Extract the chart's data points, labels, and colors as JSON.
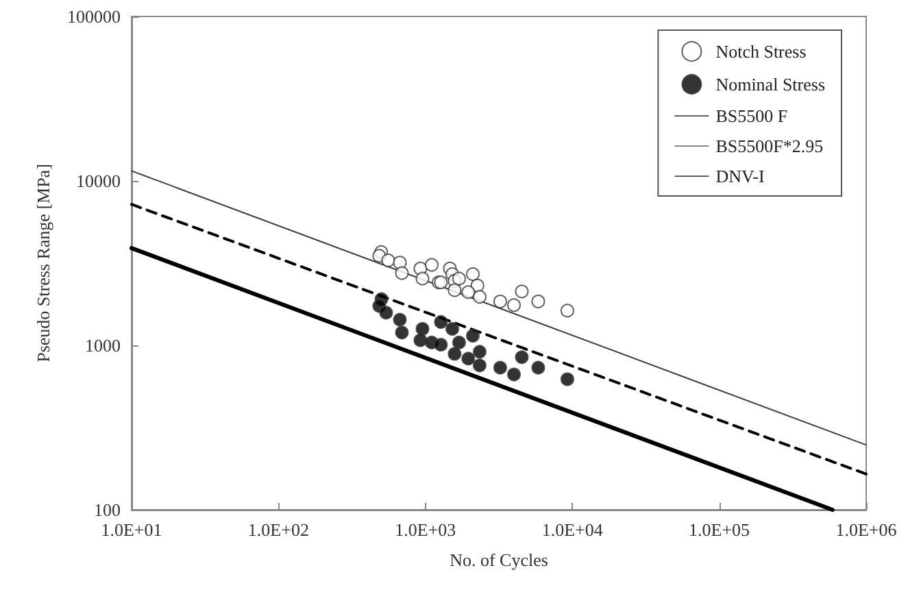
{
  "chart_data": {
    "type": "scatter",
    "xlabel": "No. of Cycles",
    "ylabel": "Pseudo Stress Range [MPa]",
    "log": "xy",
    "grid": false,
    "legend": "top right",
    "xlim": [
      10,
      1000000
    ],
    "ylim": [
      100,
      100000
    ],
    "xticks": [
      {
        "value": 10,
        "label": "1.0E+01"
      },
      {
        "value": 100,
        "label": "1.0E+02"
      },
      {
        "value": 1000,
        "label": "1.0E+03"
      },
      {
        "value": 10000,
        "label": "1.0E+04"
      },
      {
        "value": 100000,
        "label": "1.0E+05"
      },
      {
        "value": 1000000,
        "label": "1.0E+06"
      }
    ],
    "yticks": [
      100,
      1000,
      10000,
      100000
    ],
    "series": [
      {
        "name": "Notch Stress",
        "marker": "circle",
        "color": "#ffffff",
        "x": [
          500,
          485,
          558,
          670,
          692,
          924,
          955,
          1104,
          1230,
          1275,
          1468,
          1524,
          1580,
          1695,
          2103,
          2261,
          1580,
          1958,
          2340,
          3230,
          4006,
          4530,
          5860,
          9250
        ],
        "values": [
          3690,
          3500,
          3285,
          3185,
          2750,
          2930,
          2545,
          3085,
          2415,
          2415,
          2930,
          2710,
          2465,
          2545,
          2710,
          2310,
          2165,
          2105,
          1970,
          1848,
          1755,
          2127,
          1848,
          1625
        ]
      },
      {
        "name": "Nominal Stress",
        "marker": "circle",
        "color": "#000000",
        "x": [
          502,
          485,
          540,
          670,
          692,
          955,
          924,
          1104,
          1275,
          1275,
          1524,
          1695,
          1580,
          2103,
          1958,
          2340,
          2340,
          3230,
          4006,
          4530,
          5860,
          9250
        ],
        "values": [
          1910,
          1735,
          1578,
          1432,
          1196,
          1259,
          1073,
          1040,
          1008,
          1386,
          1259,
          1040,
          887,
          1143,
          830,
          914,
          755,
          731,
          665,
          847,
          731,
          622
        ]
      },
      {
        "name": "BS5500 F",
        "type": "line",
        "marker": "none",
        "line_style": "solid",
        "color": "#000000",
        "x": [
          10,
          590000
        ],
        "values": [
          3900,
          100
        ]
      },
      {
        "name": "BS5500F*2.95",
        "type": "line",
        "marker": "none",
        "line_style": "solid",
        "color": "#404040",
        "x": [
          10,
          1000000
        ],
        "values": [
          11500,
          248
        ]
      },
      {
        "name": "DNV-I",
        "type": "line",
        "marker": "none",
        "line_style": "dashed",
        "color": "#000000",
        "x": [
          10,
          1000000
        ],
        "values": [
          7200,
          165
        ]
      }
    ]
  }
}
